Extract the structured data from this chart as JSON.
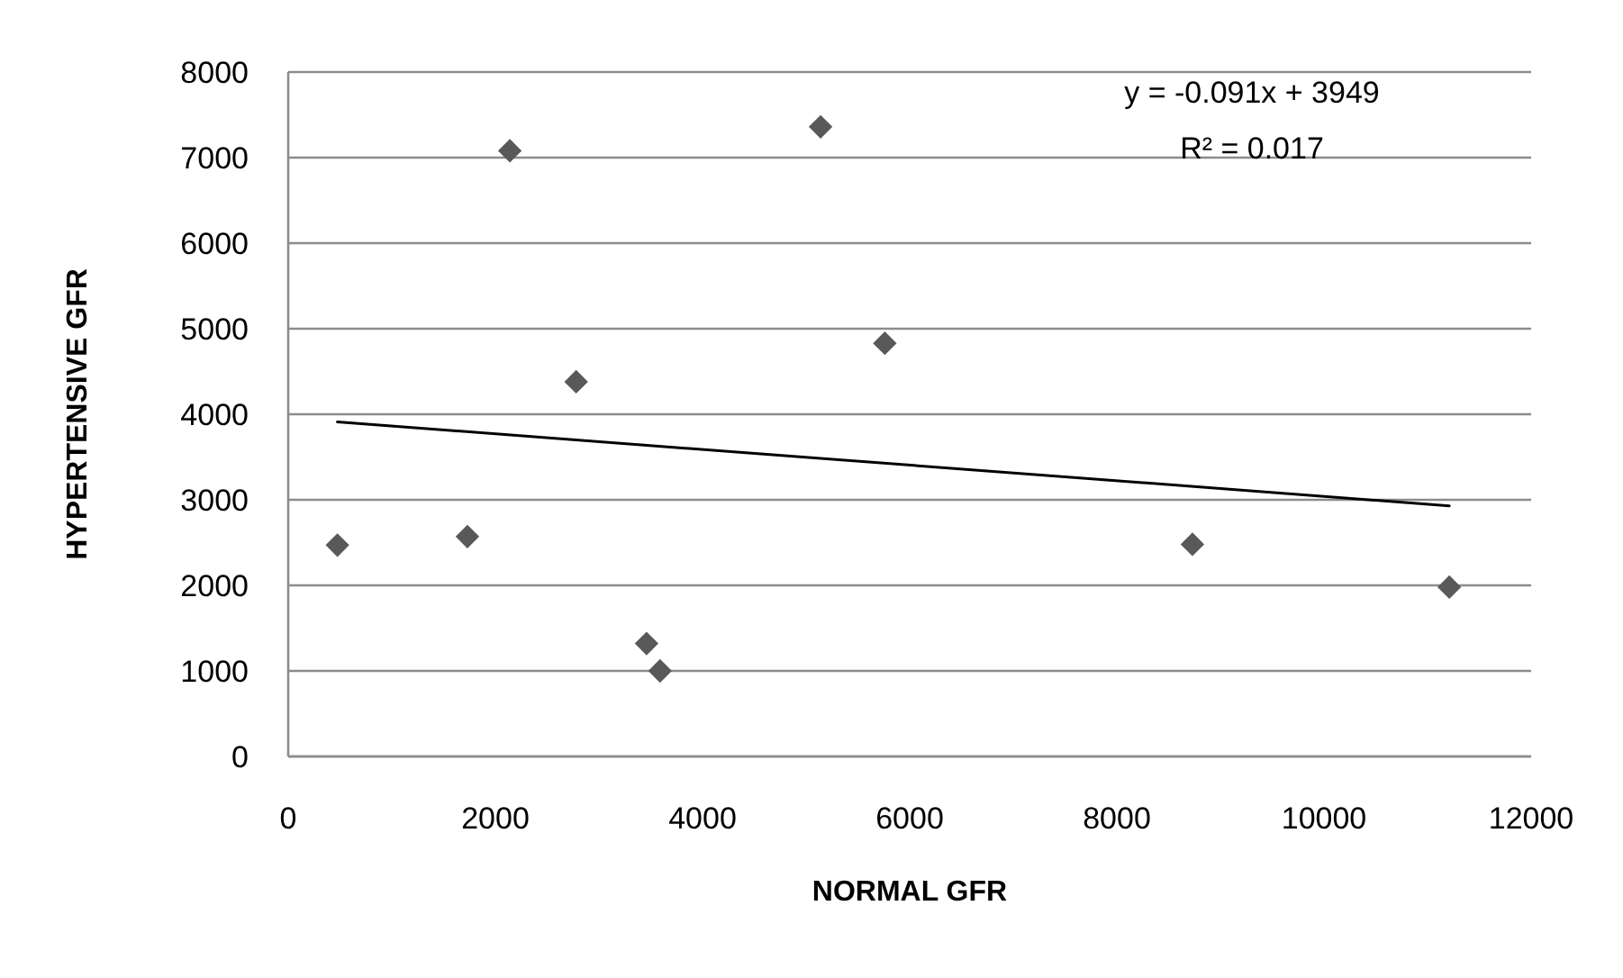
{
  "chart_data": {
    "type": "scatter",
    "xlabel": "NORMAL GFR",
    "ylabel": "HYPERTENSIVE GFR",
    "xlim": [
      0,
      12000
    ],
    "xticks": [
      0,
      2000,
      4000,
      6000,
      8000,
      10000,
      12000
    ],
    "ylim": [
      0,
      8000
    ],
    "yticks": [
      0,
      1000,
      2000,
      3000,
      4000,
      5000,
      6000,
      7000,
      8000
    ],
    "grid": "y",
    "series": [
      {
        "color": "#595959",
        "marker": "diamond",
        "x": [
          475,
          1730,
          2140,
          2780,
          3460,
          3590,
          5140,
          5760,
          8730,
          11210
        ],
        "values": [
          2470,
          2570,
          7080,
          4380,
          1320,
          1000,
          7360,
          4830,
          2480,
          1980
        ]
      },
      {
        "type": "line",
        "color": "#000000",
        "x": [
          475,
          11210
        ],
        "values": [
          3910,
          2930
        ],
        "marker": "none"
      }
    ],
    "annotations": [
      "y = -0.091x + 3949",
      "R² = 0.017"
    ]
  }
}
